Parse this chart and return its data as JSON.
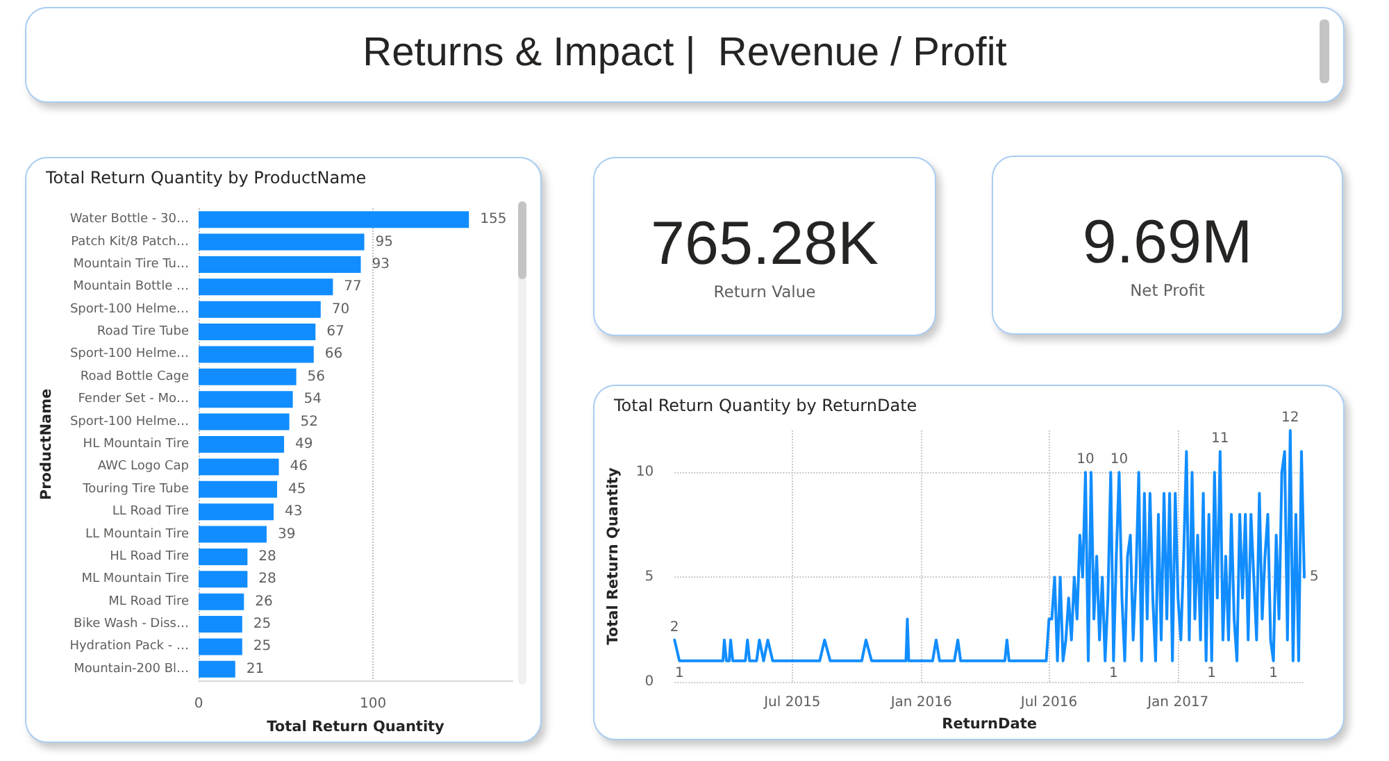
{
  "chart_data": [
    {
      "type": "other",
      "title": "Returns & Impact |  Revenue / Profit"
    },
    {
      "type": "bar",
      "title": "Total Return Quantity by ProductName",
      "orientation": "horizontal",
      "categories": [
        "Water Bottle - 30…",
        "Patch Kit/8 Patch…",
        "Mountain Tire Tu…",
        "Mountain Bottle …",
        "Sport-100 Helme…",
        "Road Tire Tube",
        "Sport-100 Helme…",
        "Road Bottle Cage",
        "Fender Set - Mo…",
        "Sport-100 Helme…",
        "HL Mountain Tire",
        "AWC Logo Cap",
        "Touring Tire Tube",
        "LL Road Tire",
        "LL Mountain Tire",
        "HL Road Tire",
        "ML Mountain Tire",
        "ML Road Tire",
        "Bike Wash - Diss…",
        "Hydration Pack - …",
        "Mountain-200 Bl…"
      ],
      "values": [
        155,
        95,
        93,
        77,
        70,
        67,
        66,
        56,
        54,
        52,
        49,
        46,
        45,
        43,
        39,
        28,
        28,
        26,
        25,
        25,
        21
      ],
      "color": "#118dff",
      "xlim": [
        0,
        180
      ],
      "xticks": [
        0,
        100
      ],
      "xlabel": "Total Return Quantity",
      "ylabel": "ProductName",
      "grid": "x",
      "data_labels": true
    },
    {
      "type": "other",
      "annotations": [
        "765.28K",
        "Return Value"
      ]
    },
    {
      "type": "other",
      "annotations": [
        "9.69M",
        "Net Profit"
      ]
    },
    {
      "type": "line",
      "title": "Total Return Quantity by ReturnDate",
      "x": [
        "2015-01-14",
        "2015-01-21",
        "2015-03-24",
        "2015-03-26",
        "2015-03-29",
        "2015-04-02",
        "2015-04-04",
        "2015-04-07",
        "2015-04-25",
        "2015-04-28",
        "2015-05-01",
        "2015-05-11",
        "2015-05-15",
        "2015-05-21",
        "2015-05-27",
        "2015-06-03",
        "2015-08-09",
        "2015-08-16",
        "2015-08-24",
        "2015-10-08",
        "2015-10-14",
        "2015-10-22",
        "2015-12-10",
        "2015-12-12",
        "2015-12-14",
        "2016-01-17",
        "2016-01-22",
        "2016-01-27",
        "2016-02-17",
        "2016-02-22",
        "2016-02-26",
        "2016-04-29",
        "2016-05-02",
        "2016-05-05",
        "2016-06-27",
        "2016-07-01",
        "2016-07-05",
        "2016-07-09",
        "2016-07-13",
        "2016-07-17",
        "2016-07-21",
        "2016-07-25",
        "2016-07-29",
        "2016-08-02",
        "2016-08-06",
        "2016-08-10",
        "2016-08-14",
        "2016-08-18",
        "2016-08-22",
        "2016-08-26",
        "2016-08-30",
        "2016-09-03",
        "2016-09-07",
        "2016-09-11",
        "2016-09-15",
        "2016-09-19",
        "2016-09-23",
        "2016-09-27",
        "2016-10-01",
        "2016-10-05",
        "2016-10-09",
        "2016-10-13",
        "2016-10-17",
        "2016-10-21",
        "2016-10-25",
        "2016-10-29",
        "2016-11-02",
        "2016-11-06",
        "2016-11-10",
        "2016-11-14",
        "2016-11-18",
        "2016-11-22",
        "2016-11-26",
        "2016-11-30",
        "2016-12-04",
        "2016-12-08",
        "2016-12-12",
        "2016-12-16",
        "2016-12-20",
        "2016-12-24",
        "2016-12-28",
        "2017-01-01",
        "2017-01-05",
        "2017-01-09",
        "2017-01-13",
        "2017-01-17",
        "2017-01-21",
        "2017-01-25",
        "2017-01-29",
        "2017-02-02",
        "2017-02-06",
        "2017-02-10",
        "2017-02-14",
        "2017-02-18",
        "2017-02-22",
        "2017-02-26",
        "2017-03-02",
        "2017-03-06",
        "2017-03-10",
        "2017-03-14",
        "2017-03-18",
        "2017-03-22",
        "2017-03-26",
        "2017-03-30",
        "2017-04-03",
        "2017-04-07",
        "2017-04-11",
        "2017-04-15",
        "2017-04-19",
        "2017-04-23",
        "2017-04-27",
        "2017-05-01",
        "2017-05-05",
        "2017-05-09",
        "2017-05-13",
        "2017-05-17",
        "2017-05-21",
        "2017-05-25",
        "2017-05-29",
        "2017-06-02",
        "2017-06-06",
        "2017-06-10",
        "2017-06-14",
        "2017-06-18",
        "2017-06-22",
        "2017-06-26",
        "2017-06-30"
      ],
      "values": [
        2,
        1,
        1,
        2,
        1,
        1,
        2,
        1,
        1,
        2,
        1,
        1,
        2,
        1,
        2,
        1,
        1,
        2,
        1,
        1,
        2,
        1,
        1,
        3,
        1,
        1,
        2,
        1,
        1,
        2,
        1,
        1,
        2,
        1,
        1,
        3,
        3,
        5,
        1,
        5,
        1,
        2,
        4,
        2,
        5,
        3,
        7,
        5,
        10,
        1,
        10,
        3,
        6,
        2,
        5,
        1,
        4,
        10,
        1,
        6,
        10,
        4,
        1,
        6,
        7,
        2,
        5,
        10,
        1,
        9,
        3,
        9,
        4,
        1,
        8,
        2,
        9,
        3,
        9,
        1,
        9,
        4,
        2,
        6,
        11,
        2,
        10,
        3,
        7,
        2,
        9,
        1,
        8,
        1,
        10,
        4,
        11,
        2,
        6,
        2,
        8,
        3,
        1,
        8,
        4,
        8,
        2,
        8,
        5,
        2,
        9,
        3,
        6,
        8,
        2,
        1,
        7,
        3,
        10,
        11,
        2,
        12,
        1,
        8,
        1,
        11,
        5
      ],
      "value_labels": [
        "2",
        "1",
        null,
        null,
        null,
        null,
        null,
        null,
        null,
        null,
        null,
        null,
        null,
        null,
        null,
        null,
        null,
        null,
        null,
        null,
        null,
        null,
        null,
        null,
        null,
        null,
        null,
        null,
        null,
        null,
        null,
        null,
        null,
        null,
        null,
        null,
        null,
        null,
        null,
        null,
        null,
        null,
        null,
        null,
        null,
        null,
        null,
        null,
        "10",
        null,
        null,
        null,
        null,
        null,
        null,
        null,
        null,
        null,
        "1",
        null,
        "10",
        null,
        null,
        null,
        null,
        null,
        null,
        null,
        null,
        null,
        null,
        null,
        null,
        null,
        null,
        null,
        null,
        null,
        null,
        null,
        null,
        null,
        null,
        null,
        null,
        null,
        null,
        null,
        null,
        null,
        null,
        null,
        null,
        "1",
        null,
        null,
        "11",
        null,
        null,
        null,
        null,
        null,
        null,
        null,
        null,
        null,
        null,
        null,
        null,
        null,
        null,
        null,
        null,
        null,
        null,
        "1",
        null,
        null,
        null,
        null,
        null,
        "12",
        null,
        null,
        null,
        null,
        "5"
      ],
      "color": "#118dff",
      "xlim": [
        "2015-01-14",
        "2017-06-30"
      ],
      "xticks": [
        {
          "value": "2015-07-01",
          "label": "Jul 2015"
        },
        {
          "value": "2016-01-01",
          "label": "Jan 2016"
        },
        {
          "value": "2016-07-01",
          "label": "Jul 2016"
        },
        {
          "value": "2017-01-01",
          "label": "Jan 2017"
        }
      ],
      "ylim": [
        0,
        12
      ],
      "yticks": [
        0,
        5,
        10
      ],
      "xlabel": "ReturnDate",
      "ylabel": "Total Return Quantity",
      "grid": true
    }
  ]
}
